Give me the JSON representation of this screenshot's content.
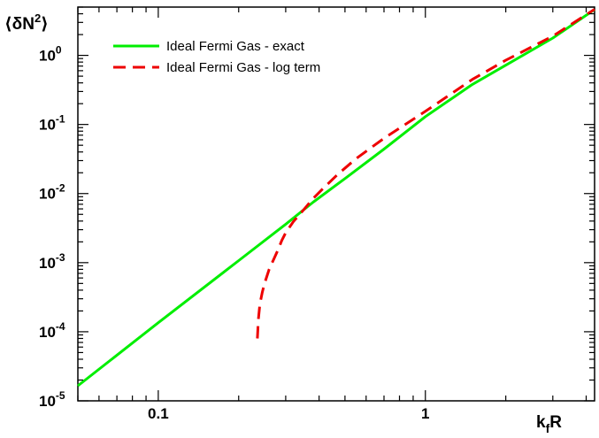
{
  "chart_data": {
    "type": "line",
    "x_scale": "log",
    "y_scale": "log",
    "xlim": [
      0.05,
      4.3
    ],
    "ylim": [
      1e-05,
      5
    ],
    "xlabel": {
      "main": "k",
      "sub": "f",
      "tail": "R"
    },
    "ylabel": {
      "pre": "⟨δN",
      "sup": "2",
      "post": "⟩"
    },
    "x_ticks": [
      {
        "value": 0.1,
        "label": "0.1"
      },
      {
        "value": 1,
        "label": "1"
      }
    ],
    "y_ticks": [
      {
        "value": 1e-05,
        "base": "10",
        "exp": "-5"
      },
      {
        "value": 0.0001,
        "base": "10",
        "exp": "-4"
      },
      {
        "value": 0.001,
        "base": "10",
        "exp": "-3"
      },
      {
        "value": 0.01,
        "base": "10",
        "exp": "-2"
      },
      {
        "value": 0.1,
        "base": "10",
        "exp": "-1"
      },
      {
        "value": 1,
        "base": "10",
        "exp": "0"
      }
    ],
    "grid": false,
    "legend_position": "top-left",
    "series": [
      {
        "name": "Ideal Fermi Gas - exact",
        "color": "#00ee00",
        "dash": "solid",
        "x": [
          0.05,
          0.1,
          0.2,
          0.3,
          0.38,
          0.5,
          0.7,
          1.0,
          1.5,
          2.0,
          3.0,
          4.3
        ],
        "y": [
          1.65e-05,
          0.000135,
          0.00107,
          0.0036,
          0.0075,
          0.0165,
          0.044,
          0.13,
          0.38,
          0.72,
          1.78,
          4.6
        ]
      },
      {
        "name": "Ideal Fermi Gas - log term",
        "color": "#ee0000",
        "dash": "dashed",
        "x": [
          0.235,
          0.237,
          0.24,
          0.245,
          0.25,
          0.26,
          0.27,
          0.28,
          0.29,
          0.3,
          0.32,
          0.35,
          0.38,
          0.42,
          0.47,
          0.55,
          0.7,
          1.0,
          1.5,
          2.0,
          3.0,
          4.3
        ],
        "y": [
          8e-05,
          0.00015,
          0.00025,
          0.00037,
          0.0005,
          0.0008,
          0.0011,
          0.0015,
          0.0021,
          0.0027,
          0.0039,
          0.0058,
          0.0085,
          0.0125,
          0.019,
          0.032,
          0.063,
          0.155,
          0.45,
          0.85,
          1.9,
          4.65
        ]
      }
    ]
  }
}
